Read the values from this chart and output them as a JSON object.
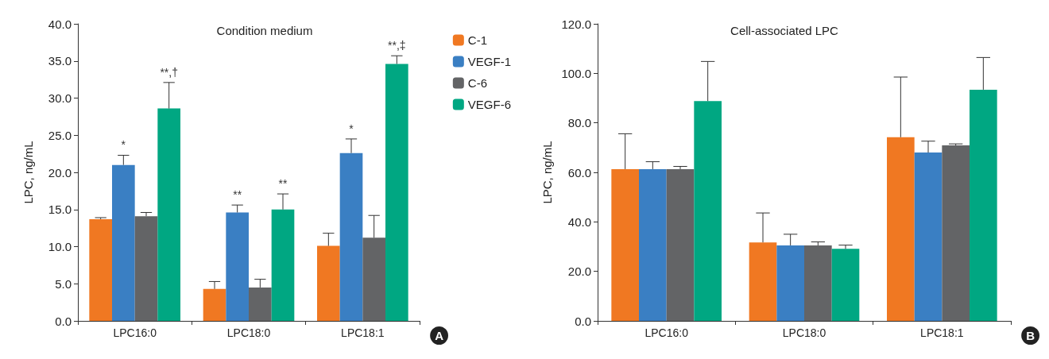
{
  "chart_data": [
    {
      "type": "bar",
      "title": "Condition medium",
      "ylabel": "LPC, ng/mL",
      "categories": [
        "LPC16:0",
        "LPC18:0",
        "LPC18:1"
      ],
      "series": [
        {
          "name": "C-1",
          "color": "#f07822",
          "values": [
            13.7,
            4.3,
            10.1
          ],
          "errors": [
            [
              13.7,
              13.9
            ],
            [
              4.3,
              5.3
            ],
            [
              10.1,
              11.8
            ]
          ]
        },
        {
          "name": "VEGF-1",
          "color": "#3a7fc3",
          "values": [
            21.0,
            14.6,
            22.6
          ],
          "value_labels": [
            "*",
            "**",
            "*"
          ],
          "errors": [
            [
              21.0,
              22.3
            ],
            [
              14.6,
              15.6
            ],
            [
              22.6,
              24.5
            ]
          ]
        },
        {
          "name": "C-6",
          "color": "#636466",
          "values": [
            14.1,
            4.5,
            11.2
          ],
          "errors": [
            [
              14.1,
              14.6
            ],
            [
              4.5,
              5.6
            ],
            [
              11.2,
              14.2
            ]
          ]
        },
        {
          "name": "VEGF-6",
          "color": "#00a782",
          "values": [
            28.6,
            15.0,
            34.6
          ],
          "value_labels": [
            "**,†",
            "**",
            "**,‡"
          ],
          "errors": [
            [
              28.6,
              32.1
            ],
            [
              15.0,
              17.1
            ],
            [
              34.6,
              35.7
            ]
          ]
        }
      ],
      "ylim": [
        0,
        40
      ],
      "yticks": [
        {
          "value": 0,
          "label": "0.0"
        },
        {
          "value": 5,
          "label": "5.0"
        },
        {
          "value": 10,
          "label": "10.0"
        },
        {
          "value": 15,
          "label": "15.0"
        },
        {
          "value": 20,
          "label": "20.0"
        },
        {
          "value": 25,
          "label": "25.0"
        },
        {
          "value": 30,
          "label": "30.0"
        },
        {
          "value": 35,
          "label": "35.0"
        },
        {
          "value": 40,
          "label": "40.0"
        }
      ],
      "grid": false,
      "legend": "right",
      "annotations": [
        "A"
      ]
    },
    {
      "type": "bar",
      "title": "Cell-associated LPC",
      "ylabel": "LPC, ng/mL",
      "categories": [
        "LPC16:0",
        "LPC18:0",
        "LPC18:1"
      ],
      "series": [
        {
          "color": "#f07822",
          "values": [
            61.3,
            31.7,
            74.2
          ],
          "errors": [
            [
              61.3,
              75.6
            ],
            [
              31.7,
              43.6
            ],
            [
              74.2,
              98.5
            ]
          ]
        },
        {
          "color": "#3a7fc3",
          "values": [
            61.3,
            30.5,
            68.0
          ],
          "errors": [
            [
              61.3,
              64.3
            ],
            [
              30.5,
              35.0
            ],
            [
              68.0,
              72.6
            ]
          ]
        },
        {
          "color": "#636466",
          "values": [
            61.3,
            30.5,
            70.9
          ],
          "errors": [
            [
              61.3,
              62.4
            ],
            [
              30.5,
              31.9
            ],
            [
              70.9,
              71.5
            ]
          ]
        },
        {
          "color": "#00a782",
          "values": [
            88.8,
            29.1,
            93.4
          ],
          "errors": [
            [
              88.8,
              104.8
            ],
            [
              29.1,
              30.6
            ],
            [
              93.4,
              106.4
            ]
          ]
        }
      ],
      "ylim": [
        0,
        120
      ],
      "yticks": [
        {
          "value": 0,
          "label": "0.0"
        },
        {
          "value": 20,
          "label": "20.0"
        },
        {
          "value": 40,
          "label": "40.0"
        },
        {
          "value": 60,
          "label": "60.0"
        },
        {
          "value": 80,
          "label": "80.0"
        },
        {
          "value": 100,
          "label": "100.0"
        },
        {
          "value": 120,
          "label": "120.0"
        }
      ],
      "grid": false,
      "annotations": [
        "B"
      ]
    }
  ]
}
